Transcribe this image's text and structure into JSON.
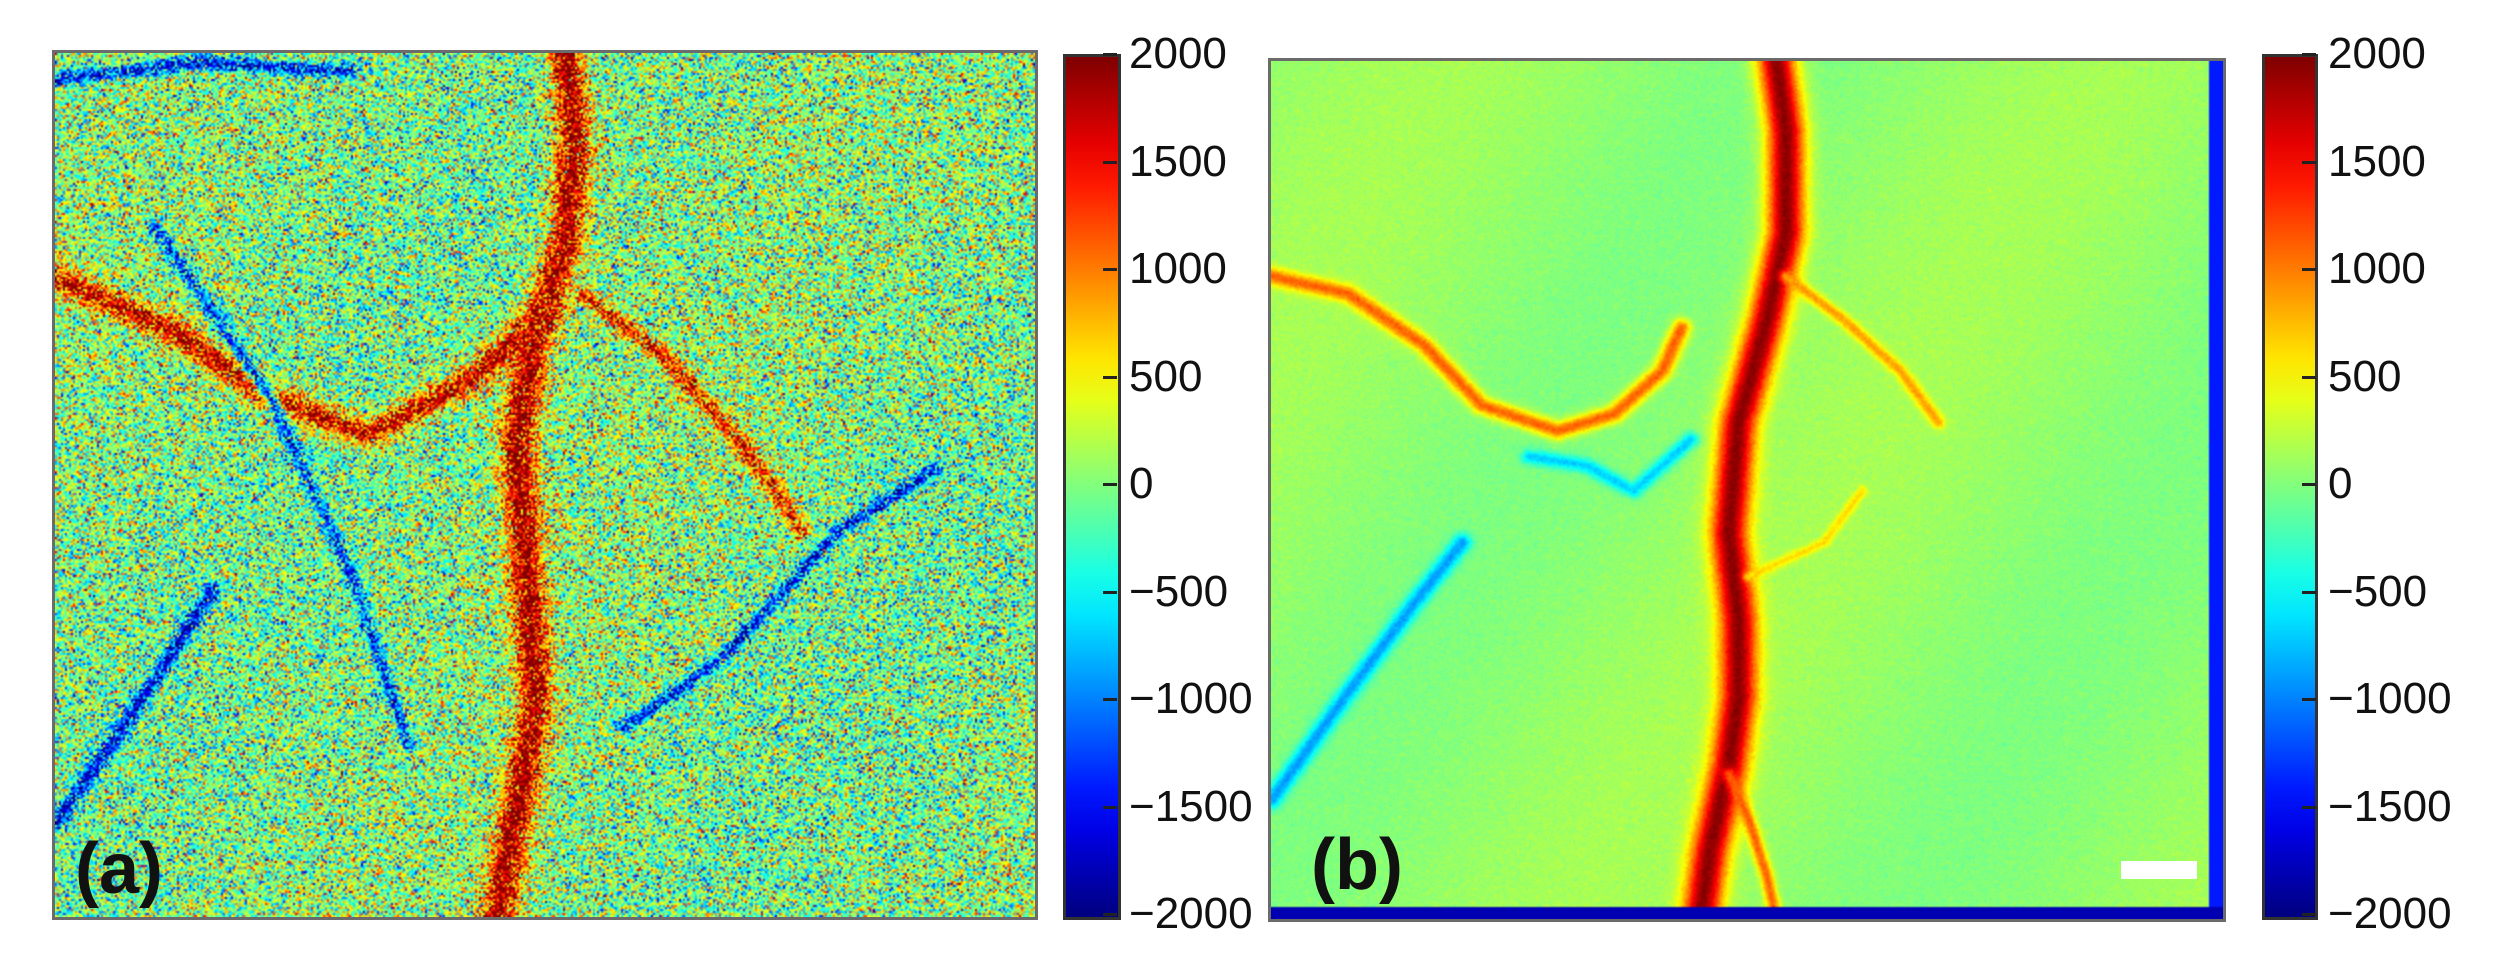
{
  "panels": [
    {
      "label": "(a)",
      "image": "noisy flow map with vessels"
    },
    {
      "label": "(b)",
      "image": "denoised flow map with vessels"
    }
  ],
  "colorbar": {
    "ticks": [
      "2000",
      "1500",
      "1000",
      "500",
      "0",
      "−500",
      "−1000",
      "−1500",
      "−2000"
    ],
    "colormap": "jet",
    "colors": [
      "#7f0000",
      "#ff0000",
      "#ffff00",
      "#00ffff",
      "#0000ff",
      "#00007f"
    ]
  },
  "scale_bar": {
    "color": "#ffffff"
  }
}
